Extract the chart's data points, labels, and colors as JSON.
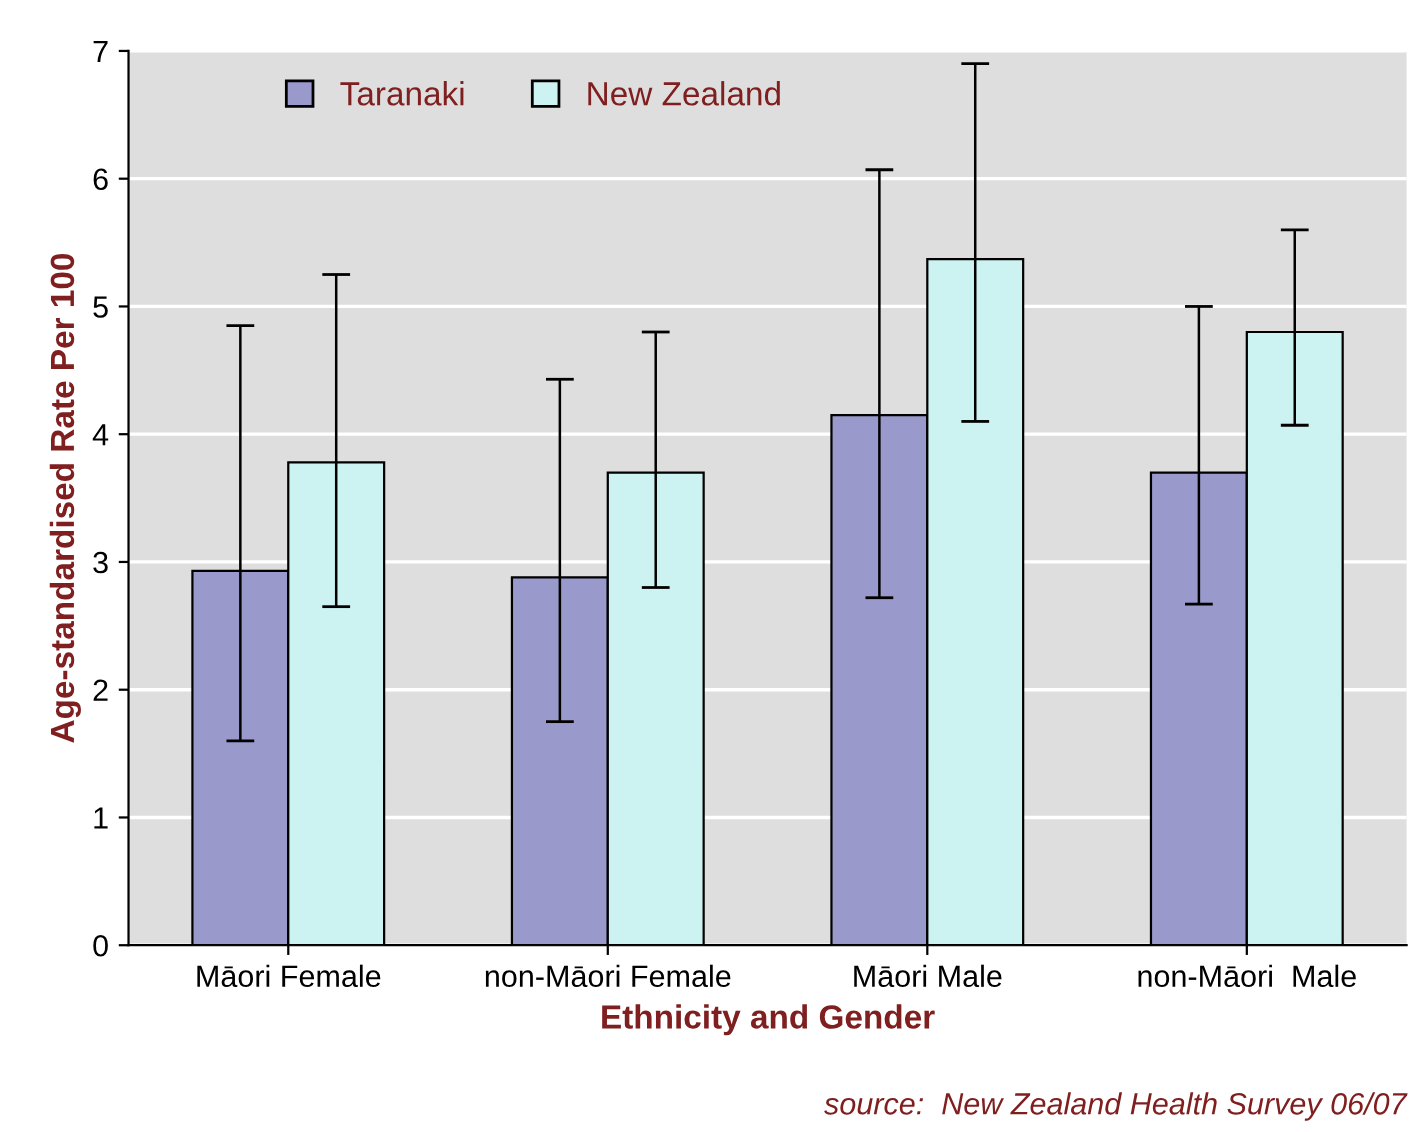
{
  "chart_data": {
    "type": "bar",
    "xlabel": "Ethnicity and Gender",
    "ylabel": "Age-standardised Rate Per 100",
    "categories": [
      "Māori Female",
      "non-Māori Female",
      "Māori Male",
      "non-Māori  Male"
    ],
    "series": [
      {
        "name": "Taranaki",
        "color": "#9999cc",
        "values": [
          2.93,
          2.88,
          4.15,
          3.7
        ],
        "errors": [
          [
            1.6,
            4.85
          ],
          [
            1.75,
            4.43
          ],
          [
            2.72,
            6.07
          ],
          [
            2.67,
            5.0
          ]
        ]
      },
      {
        "name": "New Zealand",
        "color": "#ccf2f2",
        "values": [
          3.78,
          3.7,
          5.37,
          4.8
        ],
        "errors": [
          [
            2.65,
            5.25
          ],
          [
            2.8,
            4.8
          ],
          [
            4.1,
            6.9
          ],
          [
            4.07,
            5.6
          ]
        ]
      }
    ],
    "ylim": [
      0,
      7
    ],
    "yticks": [
      0,
      1,
      2,
      3,
      4,
      5,
      6,
      7
    ],
    "grid": "y",
    "legend": "top left",
    "annotations": [
      "source:  New Zealand Health Survey 06/07"
    ]
  }
}
